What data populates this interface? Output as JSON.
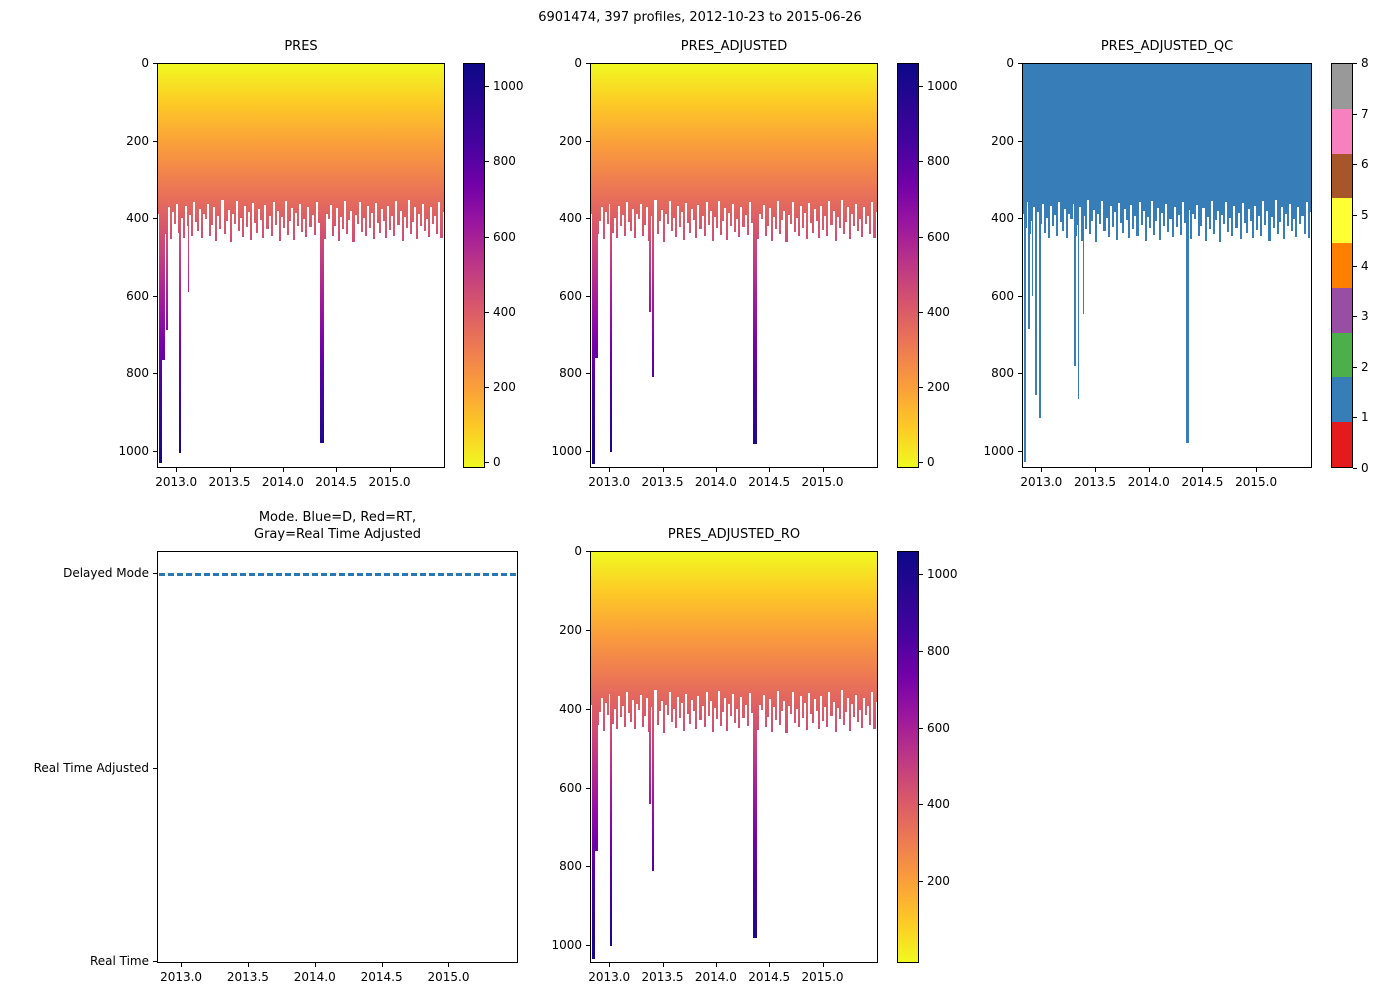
{
  "suptitle": "6901474, 397 profiles, 2012-10-23 to 2015-06-26",
  "shared": {
    "xlim": [
      2012.82,
      2015.52
    ],
    "xtick_values": [
      2013.0,
      2013.5,
      2014.0,
      2014.5,
      2015.0
    ],
    "xtick_labels": [
      "2013.0",
      "2013.5",
      "2014.0",
      "2014.5",
      "2015.0"
    ],
    "pressure_ylim": [
      0,
      1045
    ],
    "pressure_ytick_values": [
      0,
      200,
      400,
      600,
      800,
      1000
    ],
    "pressure_ytick_labels": [
      "0",
      "200",
      "400",
      "600",
      "800",
      "1000"
    ],
    "colorbar_value_range": [
      -15,
      1061
    ],
    "plasma_reversed_stops": [
      {
        "t": 0.0,
        "c": "#f0f921"
      },
      {
        "t": 0.1,
        "c": "#fdc926"
      },
      {
        "t": 0.2,
        "c": "#fa9e3b"
      },
      {
        "t": 0.3,
        "c": "#ed7953"
      },
      {
        "t": 0.4,
        "c": "#d8576b"
      },
      {
        "t": 0.5,
        "c": "#bd3786"
      },
      {
        "t": 0.6,
        "c": "#9c179e"
      },
      {
        "t": 0.7,
        "c": "#7201a8"
      },
      {
        "t": 0.8,
        "c": "#46039f"
      },
      {
        "t": 1.0,
        "c": "#0d0887"
      }
    ],
    "profile_tip_depths": [
      390,
      426,
      358,
      442,
      407,
      371,
      455,
      384,
      416,
      362,
      438,
      399,
      450,
      368,
      421,
      392,
      445,
      357,
      410,
      433,
      376,
      452,
      388,
      402,
      364,
      447,
      418,
      372,
      459,
      395,
      428,
      353,
      441,
      406,
      379,
      462,
      390,
      415,
      356,
      434,
      400,
      448,
      369,
      423,
      385,
      457,
      361,
      412,
      439,
      377,
      404,
      451,
      366,
      429,
      393,
      446,
      358,
      417,
      381,
      460,
      398,
      425,
      354,
      443,
      408,
      373,
      456,
      387,
      419,
      363,
      436,
      401,
      449,
      370,
      422,
      391,
      444,
      359,
      411,
      432,
      378,
      453,
      389,
      403,
      365,
      446,
      420,
      374,
      458,
      396,
      427,
      355,
      440,
      405,
      380,
      461,
      392,
      414,
      357,
      435,
      399,
      447,
      368,
      424,
      386,
      454,
      360,
      413,
      437,
      375,
      406,
      450,
      367,
      430,
      394,
      445,
      356,
      418,
      382,
      459,
      397,
      426,
      352,
      442,
      409,
      372,
      455,
      388,
      421,
      364,
      433,
      402,
      448,
      371,
      416,
      393,
      441,
      358,
      451,
      383
    ]
  },
  "chart_data": [
    {
      "type": "bar",
      "title": "PRES",
      "x_axis": "decimal year",
      "xtick_labels": [
        "2013.0",
        "2013.5",
        "2014.0",
        "2014.5",
        "2015.0"
      ],
      "y_axis": "pressure (0 at top, increasing downward)",
      "ylim": [
        0,
        1045
      ],
      "ytick_labels": [
        "0",
        "200",
        "400",
        "600",
        "800",
        "1000"
      ],
      "n_profiles": 397,
      "typical_profile_depth_range": [
        350,
        465
      ],
      "colormap": "plasma reversed (yellow=0, dark navy=1000+)",
      "colorbar_ticks": [
        0,
        200,
        400,
        600,
        800,
        1000
      ],
      "deep_spikes_x_depth_w": [
        [
          2012.828,
          1035,
          3
        ],
        [
          2012.858,
          768,
          2.5
        ],
        [
          2012.9,
          690,
          1.5
        ],
        [
          2013.02,
          1008,
          1.5
        ],
        [
          2013.1,
          592,
          1.5
        ],
        [
          2014.35,
          982,
          4
        ]
      ]
    },
    {
      "type": "bar",
      "title": "PRES_ADJUSTED",
      "x_axis": "decimal year",
      "xtick_labels": [
        "2013.0",
        "2013.5",
        "2014.0",
        "2014.5",
        "2015.0"
      ],
      "y_axis": "pressure (0 at top, increasing downward)",
      "ylim": [
        0,
        1045
      ],
      "ytick_labels": [
        "0",
        "200",
        "400",
        "600",
        "800",
        "1000"
      ],
      "n_profiles": 397,
      "typical_profile_depth_range": [
        350,
        465
      ],
      "colormap": "plasma reversed (yellow=0, dark navy=1000+)",
      "colorbar_ticks": [
        0,
        200,
        400,
        600,
        800,
        1000
      ],
      "deep_spikes_x_depth_w": [
        [
          2012.828,
          1038,
          3
        ],
        [
          2012.858,
          762,
          2.5
        ],
        [
          2013.0,
          1005,
          1.5
        ],
        [
          2013.37,
          642,
          2
        ],
        [
          2013.4,
          812,
          1.2
        ],
        [
          2014.35,
          985,
          4
        ]
      ]
    },
    {
      "type": "bar",
      "title": "PRES_ADJUSTED_QC",
      "x_axis": "decimal year",
      "xtick_labels": [
        "2013.0",
        "2013.5",
        "2014.0",
        "2014.5",
        "2015.0"
      ],
      "y_axis": "pressure (0 at top, increasing downward)",
      "ylim": [
        0,
        1045
      ],
      "ytick_labels": [
        "0",
        "200",
        "400",
        "600",
        "800",
        "1000"
      ],
      "n_profiles": 397,
      "qc_flag_value": 1,
      "bar_color": "#377eb8",
      "colorbar": {
        "type": "discrete",
        "ticks": [
          0,
          1,
          2,
          3,
          4,
          5,
          6,
          7,
          8
        ],
        "colors_bottom_to_top": [
          "#e41a1c",
          "#377eb8",
          "#4daf4a",
          "#984ea3",
          "#ff7f00",
          "#ffff33",
          "#a65628",
          "#f781bf",
          "#999999"
        ]
      },
      "deep_spikes_x_depth_w": [
        [
          2012.828,
          1032,
          2.5
        ],
        [
          2012.868,
          688,
          1.5
        ],
        [
          2012.9,
          602,
          1.5
        ],
        [
          2012.935,
          858,
          1.5
        ],
        [
          2012.97,
          918,
          1.5
        ],
        [
          2013.3,
          782,
          1.5
        ],
        [
          2013.335,
          868,
          1.2
        ],
        [
          2013.38,
          648,
          1.5
        ],
        [
          2014.35,
          982,
          3
        ]
      ]
    },
    {
      "type": "line",
      "title": "Mode. Blue=D, Red=RT,\nGray=Real Time Adjusted",
      "x_axis": "decimal year",
      "xtick_labels": [
        "2013.0",
        "2013.5",
        "2014.0",
        "2014.5",
        "2015.0"
      ],
      "categories_top_to_bottom": [
        "Delayed Mode",
        "Real Time Adjusted",
        "Real Time"
      ],
      "value_for_all_profiles": "Delayed Mode",
      "line_style": "dashed",
      "line_color": "#2878b5"
    },
    {
      "type": "bar",
      "title": "PRES_ADJUSTED_RO",
      "x_axis": "decimal year",
      "xtick_labels": [
        "2013.0",
        "2013.5",
        "2014.0",
        "2014.5",
        "2015.0"
      ],
      "y_axis": "pressure (0 at top, increasing downward)",
      "ylim": [
        0,
        1045
      ],
      "ytick_labels": [
        "0",
        "200",
        "400",
        "600",
        "800",
        "1000"
      ],
      "n_profiles": 397,
      "typical_profile_depth_range": [
        350,
        465
      ],
      "colormap": "plasma reversed (yellow=0, dark navy=1000+)",
      "colorbar_ticks": [
        200,
        400,
        600,
        800,
        1000
      ],
      "deep_spikes_x_depth_w": [
        [
          2012.828,
          1038,
          3
        ],
        [
          2012.858,
          762,
          2.5
        ],
        [
          2013.0,
          1005,
          1.5
        ],
        [
          2013.37,
          642,
          2
        ],
        [
          2013.4,
          812,
          1.2
        ],
        [
          2014.35,
          985,
          4
        ]
      ]
    }
  ]
}
